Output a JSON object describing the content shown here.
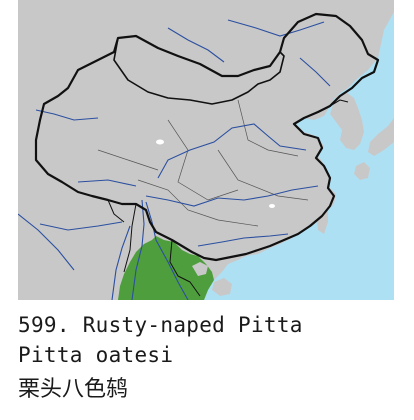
{
  "map": {
    "colors": {
      "sea": "#aee0f4",
      "land": "#c8c8c8",
      "range": "#4f9e3d",
      "river": "#2b4fa0",
      "border": "#111111",
      "province": "#555555",
      "lake": "#ffffff"
    },
    "region": "China and mainland Southeast Asia",
    "range_description": "northern Myanmar, northern Thailand, Laos and northern Vietnam"
  },
  "caption": {
    "line1": "599. Rusty-naped Pitta",
    "line2": "Pitta oatesi",
    "line3": "栗头八色鸫"
  }
}
